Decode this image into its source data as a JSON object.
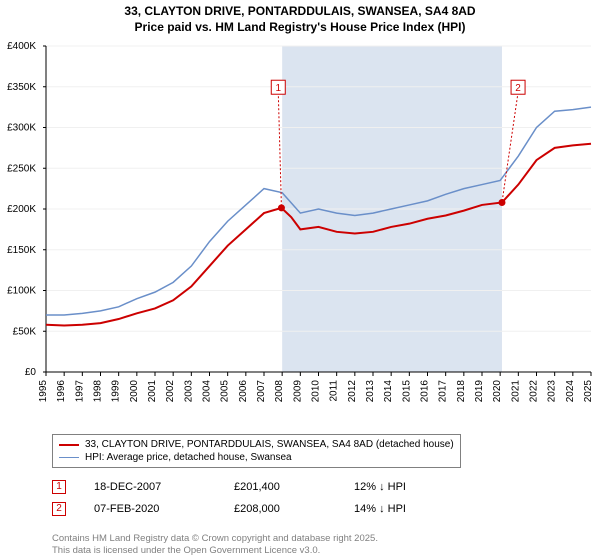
{
  "title_line1": "33, CLAYTON DRIVE, PONTARDDULAIS, SWANSEA, SA4 8AD",
  "title_line2": "Price paid vs. HM Land Registry's House Price Index (HPI)",
  "chart": {
    "type": "line",
    "background_color": "#ffffff",
    "shaded_color": "#dbe4f0",
    "grid_color": "#f0f0f0",
    "axis_color": "#000000",
    "tick_font_size": 10,
    "y_axis": {
      "min": 0,
      "max": 400000,
      "step": 50000,
      "labels": [
        "£0",
        "£50K",
        "£100K",
        "£150K",
        "£200K",
        "£250K",
        "£300K",
        "£350K",
        "£400K"
      ]
    },
    "x_axis": {
      "min": 1995,
      "max": 2025,
      "labels": [
        "1995",
        "1996",
        "1997",
        "1998",
        "1999",
        "2000",
        "2001",
        "2002",
        "2003",
        "2004",
        "2005",
        "2006",
        "2007",
        "2008",
        "2009",
        "2010",
        "2011",
        "2012",
        "2013",
        "2014",
        "2015",
        "2016",
        "2017",
        "2018",
        "2019",
        "2020",
        "2021",
        "2022",
        "2023",
        "2024",
        "2025"
      ]
    },
    "shaded_range": {
      "from": 2008.0,
      "to": 2020.1
    },
    "series": [
      {
        "name": "property",
        "color": "#cc0000",
        "width": 2,
        "points": [
          [
            1995,
            58000
          ],
          [
            1996,
            57000
          ],
          [
            1997,
            58000
          ],
          [
            1998,
            60000
          ],
          [
            1999,
            65000
          ],
          [
            2000,
            72000
          ],
          [
            2001,
            78000
          ],
          [
            2002,
            88000
          ],
          [
            2003,
            105000
          ],
          [
            2004,
            130000
          ],
          [
            2005,
            155000
          ],
          [
            2006,
            175000
          ],
          [
            2007,
            195000
          ],
          [
            2007.96,
            201400
          ],
          [
            2008.5,
            190000
          ],
          [
            2009,
            175000
          ],
          [
            2010,
            178000
          ],
          [
            2011,
            172000
          ],
          [
            2012,
            170000
          ],
          [
            2013,
            172000
          ],
          [
            2014,
            178000
          ],
          [
            2015,
            182000
          ],
          [
            2016,
            188000
          ],
          [
            2017,
            192000
          ],
          [
            2018,
            198000
          ],
          [
            2019,
            205000
          ],
          [
            2020.1,
            208000
          ],
          [
            2021,
            230000
          ],
          [
            2022,
            260000
          ],
          [
            2023,
            275000
          ],
          [
            2024,
            278000
          ],
          [
            2025,
            280000
          ]
        ]
      },
      {
        "name": "hpi",
        "color": "#6a8fc9",
        "width": 1.5,
        "points": [
          [
            1995,
            70000
          ],
          [
            1996,
            70000
          ],
          [
            1997,
            72000
          ],
          [
            1998,
            75000
          ],
          [
            1999,
            80000
          ],
          [
            2000,
            90000
          ],
          [
            2001,
            98000
          ],
          [
            2002,
            110000
          ],
          [
            2003,
            130000
          ],
          [
            2004,
            160000
          ],
          [
            2005,
            185000
          ],
          [
            2006,
            205000
          ],
          [
            2007,
            225000
          ],
          [
            2008,
            220000
          ],
          [
            2009,
            195000
          ],
          [
            2010,
            200000
          ],
          [
            2011,
            195000
          ],
          [
            2012,
            192000
          ],
          [
            2013,
            195000
          ],
          [
            2014,
            200000
          ],
          [
            2015,
            205000
          ],
          [
            2016,
            210000
          ],
          [
            2017,
            218000
          ],
          [
            2018,
            225000
          ],
          [
            2019,
            230000
          ],
          [
            2020,
            235000
          ],
          [
            2021,
            265000
          ],
          [
            2022,
            300000
          ],
          [
            2023,
            320000
          ],
          [
            2024,
            322000
          ],
          [
            2025,
            325000
          ]
        ]
      }
    ],
    "markers": [
      {
        "label": "1",
        "x": 2007.96,
        "y": 201400,
        "box_x": 2007.4,
        "box_y": 358000
      },
      {
        "label": "2",
        "x": 2020.1,
        "y": 208000,
        "box_x": 2020.6,
        "box_y": 358000
      }
    ],
    "marker_border_color": "#cc0000",
    "marker_text_color": "#cc0000",
    "marker_dot_color": "#cc0000"
  },
  "legend": {
    "items": [
      {
        "color": "#cc0000",
        "width": 2,
        "label": "33, CLAYTON DRIVE, PONTARDDULAIS, SWANSEA, SA4 8AD (detached house)"
      },
      {
        "color": "#6a8fc9",
        "width": 1.5,
        "label": "HPI: Average price, detached house, Swansea"
      }
    ]
  },
  "sales": [
    {
      "num": "1",
      "date": "18-DEC-2007",
      "price": "£201,400",
      "delta": "12% ↓ HPI"
    },
    {
      "num": "2",
      "date": "07-FEB-2020",
      "price": "£208,000",
      "delta": "14% ↓ HPI"
    }
  ],
  "footer_line1": "Contains HM Land Registry data © Crown copyright and database right 2025.",
  "footer_line2": "This data is licensed under the Open Government Licence v3.0."
}
